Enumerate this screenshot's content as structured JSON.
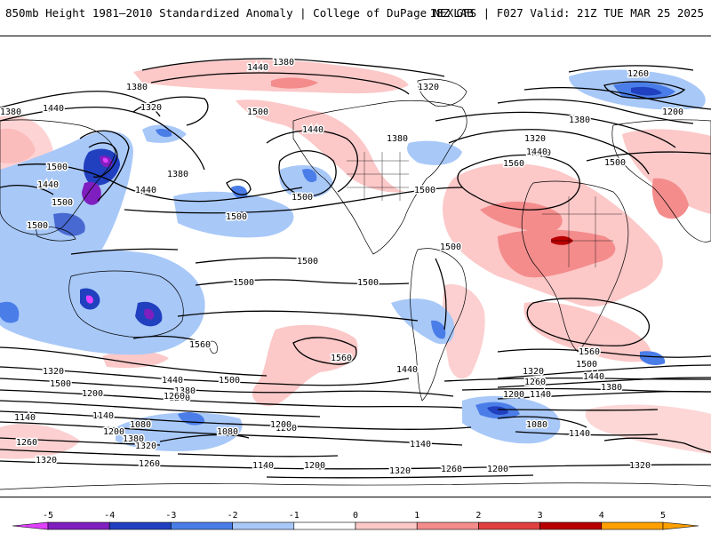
{
  "header": {
    "title_left": "850mb Height 1981–2010 Standardized Anomaly | College of DuPage NEXLAB",
    "title_right": "18Z GFS | F027 Valid: 21Z TUE MAR 25 2025"
  },
  "colorbar": {
    "ticks": [
      "-5",
      "-4",
      "-3",
      "-2",
      "-1",
      "0",
      "1",
      "2",
      "3",
      "4",
      "5"
    ],
    "colors": [
      "#e040ff",
      "#7f1fbf",
      "#2040c0",
      "#4a7de8",
      "#a8c8f8",
      "#ffffff",
      "#fcc8c8",
      "#f48c8c",
      "#e04040",
      "#b80000",
      "#ffa000"
    ]
  },
  "contour_labels": [
    "1380",
    "1440",
    "1380",
    "1320",
    "1440",
    "1500",
    "1440",
    "1500",
    "1440",
    "1380",
    "1380",
    "1500",
    "1440",
    "1500",
    "1500",
    "1500",
    "1500",
    "1500",
    "1440",
    "1320",
    "1380",
    "1260",
    "1200",
    "1320",
    "1380",
    "1440",
    "1500",
    "1560",
    "1500",
    "1500",
    "1500",
    "1560",
    "1560",
    "1440",
    "1320",
    "1260",
    "1200",
    "1140",
    "1080",
    "1380",
    "1440",
    "1500",
    "1560",
    "1500",
    "1440",
    "1380",
    "1320",
    "1260",
    "1200",
    "1140",
    "1080",
    "1140",
    "1200",
    "1140",
    "1080",
    "1200",
    "1260",
    "1320",
    "1200",
    "1260",
    "1380",
    "1320",
    "1260",
    "1140",
    "1200",
    "1320",
    "1260",
    "1200",
    "1320",
    "1140",
    "1500"
  ],
  "legend_colors": {
    "contour": "#000000",
    "land_outline": "#000000"
  }
}
